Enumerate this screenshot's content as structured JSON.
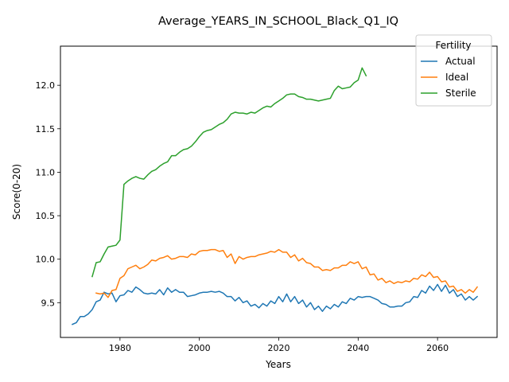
{
  "chart_data": {
    "type": "line",
    "title": "Average_YEARS_IN_SCHOOL_Black_Q1_IQ",
    "xlabel": "Years",
    "ylabel": "Score(0-20)",
    "xlim": [
      1965,
      2075
    ],
    "ylim": [
      9.1,
      12.45
    ],
    "xticks": [
      1980,
      2000,
      2020,
      2040,
      2060
    ],
    "yticks": [
      9.5,
      10.0,
      10.5,
      11.0,
      11.5,
      12.0
    ],
    "xtick_labels": [
      "1980",
      "2000",
      "2020",
      "2040",
      "2060"
    ],
    "ytick_labels": [
      "9.5",
      "10.0",
      "10.5",
      "11.0",
      "11.5",
      "12.0"
    ],
    "grid": false,
    "legend": {
      "title": "Fertility",
      "position": "top-right"
    },
    "series": [
      {
        "name": "Actual",
        "color": "#1f77b4",
        "x": [
          1968,
          1969,
          1970,
          1971,
          1972,
          1973,
          1974,
          1975,
          1976,
          1977,
          1978,
          1979,
          1980,
          1981,
          1982,
          1983,
          1984,
          1985,
          1986,
          1987,
          1988,
          1989,
          1990,
          1991,
          1992,
          1993,
          1994,
          1995,
          1996,
          1997,
          1998,
          1999,
          2000,
          2001,
          2002,
          2003,
          2004,
          2005,
          2006,
          2007,
          2008,
          2009,
          2010,
          2011,
          2012,
          2013,
          2014,
          2015,
          2016,
          2017,
          2018,
          2019,
          2020,
          2021,
          2022,
          2023,
          2024,
          2025,
          2026,
          2027,
          2028,
          2029,
          2030,
          2031,
          2032,
          2033,
          2034,
          2035,
          2036,
          2037,
          2038,
          2039,
          2040,
          2041,
          2042,
          2043,
          2044,
          2045,
          2046,
          2047,
          2048,
          2049,
          2050,
          2051,
          2052,
          2053,
          2054,
          2055,
          2056,
          2057,
          2058,
          2059,
          2060,
          2061,
          2062,
          2063,
          2064,
          2065,
          2066,
          2067,
          2068,
          2069,
          2070
        ],
        "values": [
          9.25,
          9.27,
          9.34,
          9.34,
          9.37,
          9.42,
          9.51,
          9.53,
          9.62,
          9.6,
          9.61,
          9.51,
          9.58,
          9.59,
          9.64,
          9.62,
          9.68,
          9.65,
          9.61,
          9.6,
          9.61,
          9.6,
          9.65,
          9.59,
          9.67,
          9.62,
          9.65,
          9.62,
          9.62,
          9.57,
          9.58,
          9.59,
          9.61,
          9.62,
          9.62,
          9.63,
          9.62,
          9.63,
          9.61,
          9.57,
          9.57,
          9.52,
          9.56,
          9.5,
          9.52,
          9.46,
          9.48,
          9.44,
          9.49,
          9.46,
          9.52,
          9.49,
          9.57,
          9.51,
          9.6,
          9.51,
          9.57,
          9.49,
          9.53,
          9.45,
          9.5,
          9.42,
          9.46,
          9.4,
          9.46,
          9.43,
          9.48,
          9.45,
          9.51,
          9.49,
          9.55,
          9.53,
          9.57,
          9.56,
          9.57,
          9.57,
          9.55,
          9.53,
          9.49,
          9.48,
          9.45,
          9.45,
          9.46,
          9.46,
          9.5,
          9.51,
          9.57,
          9.56,
          9.64,
          9.61,
          9.69,
          9.64,
          9.71,
          9.63,
          9.7,
          9.61,
          9.65,
          9.57,
          9.6,
          9.53,
          9.57,
          9.53,
          9.57
        ]
      },
      {
        "name": "Ideal",
        "color": "#ff7f0e",
        "x": [
          1974,
          1975,
          1976,
          1977,
          1978,
          1979,
          1980,
          1981,
          1982,
          1983,
          1984,
          1985,
          1986,
          1987,
          1988,
          1989,
          1990,
          1991,
          1992,
          1993,
          1994,
          1995,
          1996,
          1997,
          1998,
          1999,
          2000,
          2001,
          2002,
          2003,
          2004,
          2005,
          2006,
          2007,
          2008,
          2009,
          2010,
          2011,
          2012,
          2013,
          2014,
          2015,
          2016,
          2017,
          2018,
          2019,
          2020,
          2021,
          2022,
          2023,
          2024,
          2025,
          2026,
          2027,
          2028,
          2029,
          2030,
          2031,
          2032,
          2033,
          2034,
          2035,
          2036,
          2037,
          2038,
          2039,
          2040,
          2041,
          2042,
          2043,
          2044,
          2045,
          2046,
          2047,
          2048,
          2049,
          2050,
          2051,
          2052,
          2053,
          2054,
          2055,
          2056,
          2057,
          2058,
          2059,
          2060,
          2061,
          2062,
          2063,
          2064,
          2065,
          2066,
          2067,
          2068,
          2069,
          2070
        ],
        "values": [
          9.61,
          9.6,
          9.61,
          9.56,
          9.64,
          9.65,
          9.78,
          9.81,
          9.89,
          9.91,
          9.93,
          9.89,
          9.91,
          9.94,
          9.99,
          9.98,
          10.01,
          10.02,
          10.04,
          10.0,
          10.01,
          10.03,
          10.03,
          10.02,
          10.06,
          10.05,
          10.09,
          10.1,
          10.1,
          10.11,
          10.11,
          10.09,
          10.1,
          10.02,
          10.06,
          9.95,
          10.03,
          10.0,
          10.02,
          10.03,
          10.03,
          10.05,
          10.06,
          10.07,
          10.09,
          10.08,
          10.11,
          10.08,
          10.08,
          10.02,
          10.05,
          9.98,
          10.01,
          9.96,
          9.95,
          9.91,
          9.91,
          9.87,
          9.88,
          9.87,
          9.9,
          9.9,
          9.93,
          9.93,
          9.97,
          9.95,
          9.97,
          9.89,
          9.91,
          9.82,
          9.83,
          9.76,
          9.78,
          9.73,
          9.75,
          9.72,
          9.74,
          9.73,
          9.75,
          9.74,
          9.78,
          9.77,
          9.82,
          9.8,
          9.85,
          9.79,
          9.8,
          9.74,
          9.75,
          9.68,
          9.69,
          9.63,
          9.65,
          9.61,
          9.65,
          9.62,
          9.68
        ]
      },
      {
        "name": "Sterile",
        "color": "#2ca02c",
        "x": [
          1973,
          1974,
          1975,
          1976,
          1977,
          1978,
          1979,
          1980,
          1981,
          1982,
          1983,
          1984,
          1985,
          1986,
          1987,
          1988,
          1989,
          1990,
          1991,
          1992,
          1993,
          1994,
          1995,
          1996,
          1997,
          1998,
          1999,
          2000,
          2001,
          2002,
          2003,
          2004,
          2005,
          2006,
          2007,
          2008,
          2009,
          2010,
          2011,
          2012,
          2013,
          2014,
          2015,
          2016,
          2017,
          2018,
          2019,
          2020,
          2021,
          2022,
          2023,
          2024,
          2025,
          2026,
          2027,
          2028,
          2029,
          2030,
          2031,
          2032,
          2033,
          2034,
          2035,
          2036,
          2037,
          2038,
          2039,
          2040,
          2041,
          2042
        ],
        "values": [
          9.8,
          9.96,
          9.97,
          10.06,
          10.14,
          10.15,
          10.16,
          10.22,
          10.86,
          10.9,
          10.93,
          10.95,
          10.93,
          10.92,
          10.97,
          11.01,
          11.03,
          11.07,
          11.1,
          11.12,
          11.19,
          11.19,
          11.23,
          11.26,
          11.27,
          11.3,
          11.35,
          11.41,
          11.46,
          11.48,
          11.49,
          11.52,
          11.55,
          11.57,
          11.61,
          11.67,
          11.69,
          11.68,
          11.68,
          11.67,
          11.69,
          11.68,
          11.71,
          11.74,
          11.76,
          11.75,
          11.79,
          11.82,
          11.85,
          11.89,
          11.9,
          11.9,
          11.87,
          11.86,
          11.84,
          11.84,
          11.83,
          11.82,
          11.83,
          11.84,
          11.85,
          11.94,
          11.99,
          11.96,
          11.97,
          11.98,
          12.03,
          12.06,
          12.2,
          12.11
        ]
      }
    ]
  }
}
